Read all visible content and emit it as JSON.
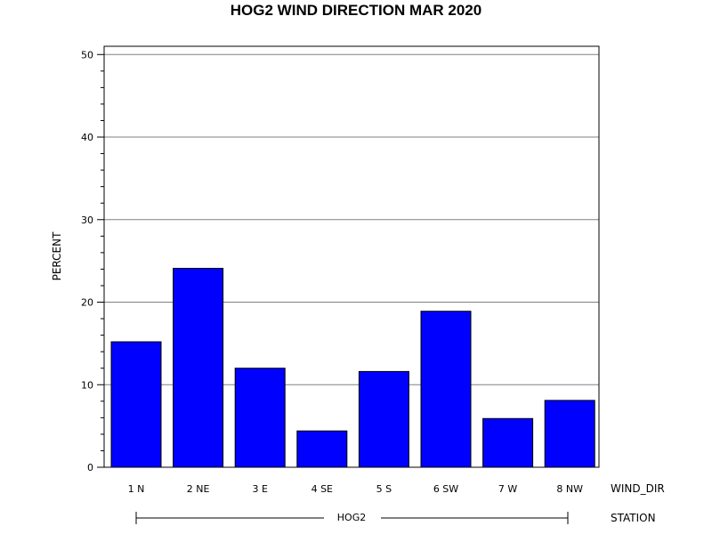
{
  "chart_data": {
    "type": "bar",
    "title": "HOG2 WIND DIRECTION MAR 2020",
    "ylabel": "PERCENT",
    "xlabel": "WIND_DIR",
    "group_axis_label": "STATION",
    "group_label": "HOG2",
    "categories": [
      "1 N",
      "2 NE",
      "3 E",
      "4 SE",
      "5 S",
      "6 SW",
      "7 W",
      "8 NW"
    ],
    "values": [
      15.2,
      24.1,
      12.0,
      4.4,
      11.6,
      18.9,
      5.9,
      8.1
    ],
    "ylim": [
      0,
      51
    ],
    "yticks": [
      0,
      10,
      20,
      30,
      40,
      50
    ],
    "grid": true,
    "bar_color": "#0000ff"
  }
}
